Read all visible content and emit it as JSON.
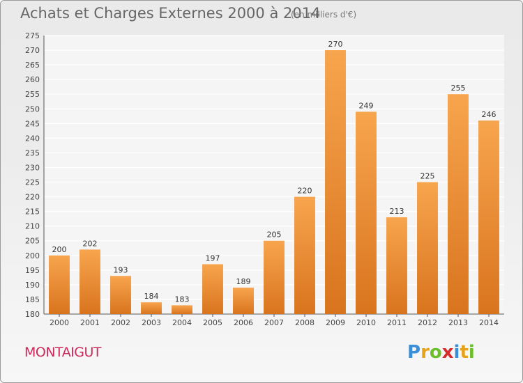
{
  "chart_data": {
    "type": "bar",
    "title": "Achats et Charges Externes 2000 à 2014",
    "subtitle": "(en milliers d'€)",
    "categories": [
      "2000",
      "2001",
      "2002",
      "2003",
      "2004",
      "2005",
      "2006",
      "2007",
      "2008",
      "2009",
      "2010",
      "2011",
      "2012",
      "2013",
      "2014"
    ],
    "values": [
      200,
      202,
      193,
      184,
      183,
      197,
      189,
      205,
      220,
      270,
      249,
      213,
      225,
      255,
      246
    ],
    "ylim": [
      180,
      275
    ],
    "ytick_step": 5,
    "grid": true,
    "bar_color_light": "#f7a54e",
    "bar_color_dark": "#d9741e",
    "legend": "none"
  },
  "footer": {
    "commune": "MONTAIGUT",
    "logo_letters": [
      "P",
      "r",
      "o",
      "x",
      "i",
      "t",
      "i"
    ],
    "logo_colors": [
      "#3a8fd6",
      "#e8a21a",
      "#6cbf2a",
      "#d62b2b",
      "#3a8fd6",
      "#e8a21a",
      "#6cbf2a"
    ]
  }
}
